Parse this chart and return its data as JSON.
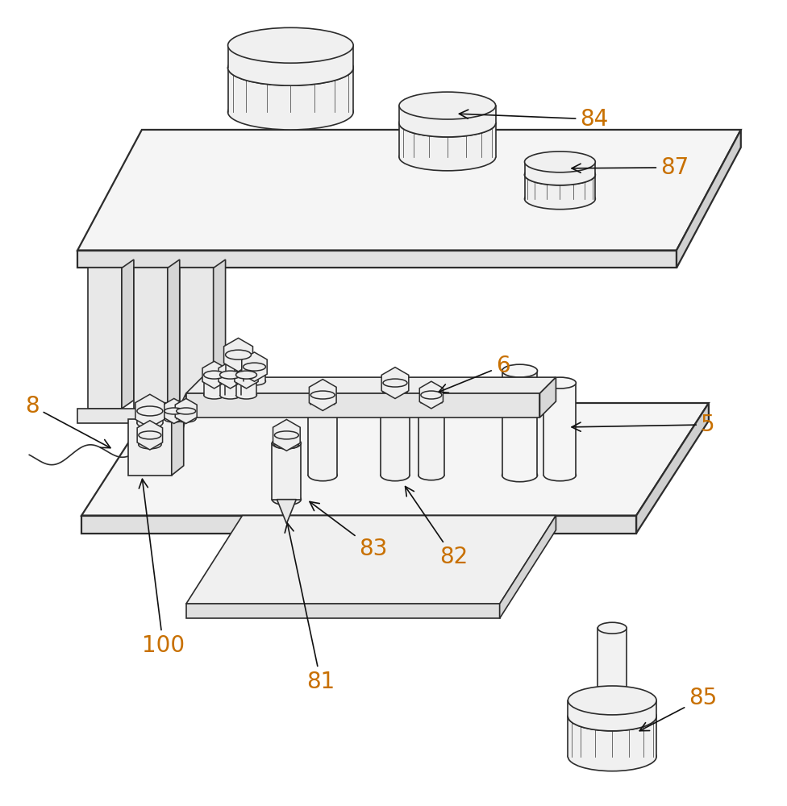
{
  "bg_color": "#ffffff",
  "line_color": "#2c2c2c",
  "label_color": "#c87000",
  "arrow_color": "#111111",
  "lw": 1.2,
  "tlw": 1.6,
  "label_fontsize": 20
}
